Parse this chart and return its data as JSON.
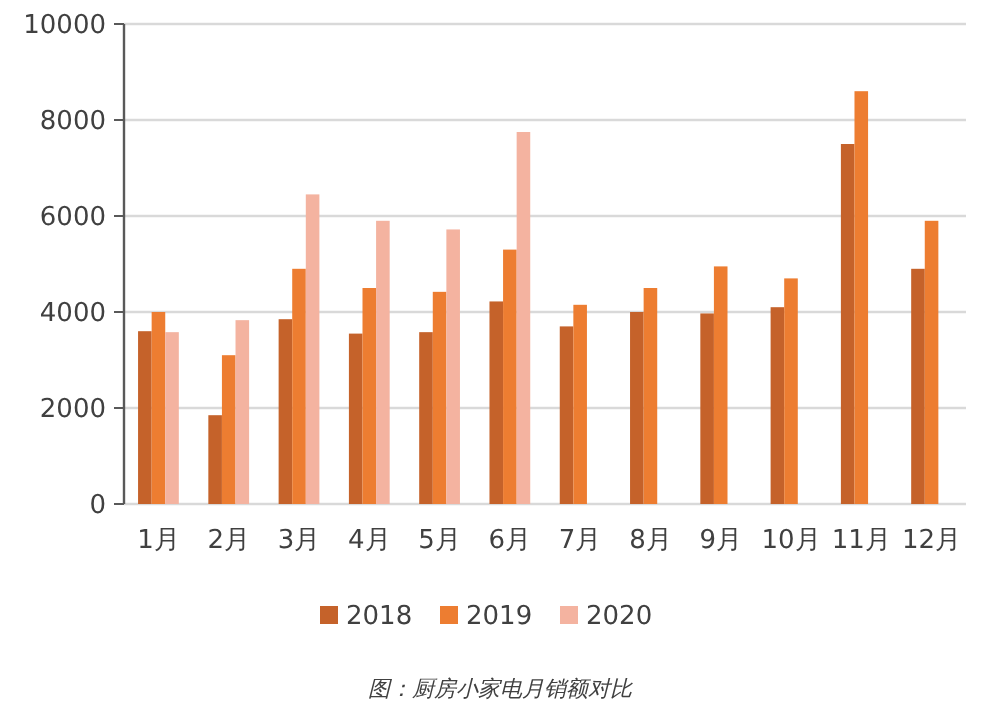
{
  "chart_data": {
    "type": "bar",
    "categories": [
      "1月",
      "2月",
      "3月",
      "4月",
      "5月",
      "6月",
      "7月",
      "8月",
      "9月",
      "10月",
      "11月",
      "12月"
    ],
    "series": [
      {
        "name": "2018",
        "color": "#c5622a",
        "values": [
          3600,
          1850,
          3850,
          3550,
          3580,
          4220,
          3700,
          4000,
          3970,
          4100,
          7500,
          4900
        ]
      },
      {
        "name": "2019",
        "color": "#ed7d31",
        "values": [
          4000,
          3100,
          4900,
          4500,
          4420,
          5300,
          4150,
          4500,
          4950,
          4700,
          8600,
          5900
        ]
      },
      {
        "name": "2020",
        "color": "#f4b3a0",
        "values": [
          3580,
          3830,
          6450,
          5900,
          5720,
          7750,
          null,
          null,
          null,
          null,
          null,
          null
        ]
      }
    ],
    "ylim": [
      0,
      10000
    ],
    "yticks": [
      0,
      2000,
      4000,
      6000,
      8000,
      10000
    ],
    "grid": "y",
    "legend": "bottom",
    "annotations": [
      "图：厨房小家电月销额对比"
    ]
  }
}
